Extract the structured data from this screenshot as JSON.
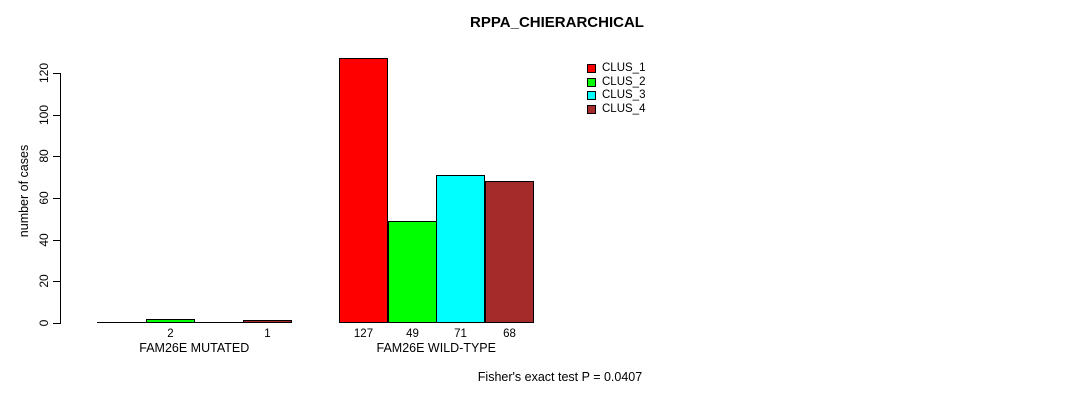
{
  "title": "RPPA_CHIERARCHICAL",
  "footer": "Fisher's exact test P = 0.0407",
  "chart_data": {
    "type": "bar",
    "title": "RPPA_CHIERARCHICAL",
    "xlabel": "",
    "ylabel": "number of cases",
    "ylim": [
      0,
      120
    ],
    "yticks": [
      0,
      20,
      40,
      60,
      80,
      100,
      120
    ],
    "categories": [
      "FAM26E MUTATED",
      "FAM26E WILD-TYPE"
    ],
    "series": [
      {
        "name": "CLUS_1",
        "color": "#ff0000",
        "values": [
          0,
          127
        ]
      },
      {
        "name": "CLUS_2",
        "color": "#00ff00",
        "values": [
          2,
          49
        ]
      },
      {
        "name": "CLUS_3",
        "color": "#00ffff",
        "values": [
          0,
          71
        ]
      },
      {
        "name": "CLUS_4",
        "color": "#a52a2a",
        "values": [
          1,
          68
        ]
      }
    ],
    "bar_value_labels_shown": [
      "2",
      "1",
      "127",
      "49",
      "71",
      "68"
    ],
    "legend_position": "top-right",
    "grid": false,
    "annotation": "Fisher's exact test P = 0.0407"
  }
}
